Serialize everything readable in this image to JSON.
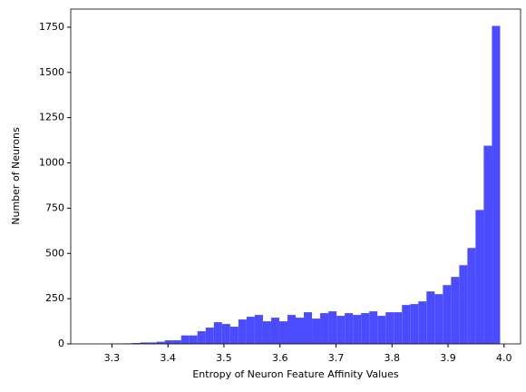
{
  "chart_data": {
    "type": "histogram",
    "xlabel": "Entropy of Neuron Feature Affinity Values",
    "ylabel": "Number of Neurons",
    "bins": [
      3.263,
      3.2776,
      3.2922,
      3.3068,
      3.3214,
      3.336,
      3.3506,
      3.3652,
      3.3798,
      3.3944,
      3.409,
      3.4236,
      3.4382,
      3.4528,
      3.4674,
      3.482,
      3.4966,
      3.5112,
      3.5258,
      3.5404,
      3.555,
      3.5696,
      3.5842,
      3.5988,
      3.6134,
      3.628,
      3.6426,
      3.6572,
      3.6718,
      3.6864,
      3.701,
      3.7156,
      3.7302,
      3.7448,
      3.7594,
      3.774,
      3.7886,
      3.8032,
      3.8178,
      3.8324,
      3.847,
      3.8616,
      3.8762,
      3.8908,
      3.9054,
      3.92,
      3.9346,
      3.9492,
      3.9638,
      3.9784,
      3.993
    ],
    "counts": [
      0,
      0,
      1,
      2,
      3,
      5,
      8,
      8,
      12,
      20,
      20,
      47,
      47,
      70,
      90,
      120,
      110,
      95,
      135,
      150,
      160,
      125,
      145,
      125,
      160,
      145,
      175,
      140,
      170,
      180,
      155,
      170,
      160,
      170,
      180,
      155,
      175,
      175,
      215,
      220,
      235,
      290,
      275,
      325,
      370,
      435,
      530,
      740,
      1095,
      1757
    ],
    "color": "#4c4cff",
    "xlim": [
      3.2265,
      4.0295
    ],
    "xticks": [
      3.3,
      3.4,
      3.5,
      3.6,
      3.7,
      3.8,
      3.9,
      {
        "value": 4,
        "label": "4.0"
      }
    ],
    "ylim": [
      0,
      1850
    ],
    "yticks": [
      0,
      250,
      500,
      750,
      1000,
      1250,
      1500,
      1750
    ]
  }
}
